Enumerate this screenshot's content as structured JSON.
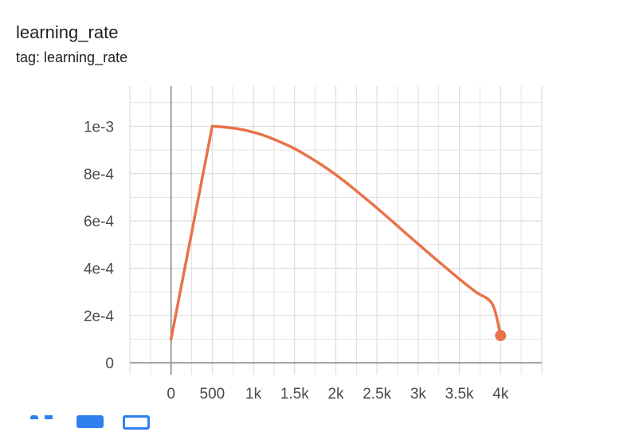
{
  "card": {
    "title": "learning_rate",
    "subtitle": "tag: learning_rate"
  },
  "colors": {
    "series": "#E8734A",
    "grid": "#dcdcdc",
    "axis": "#9e9e9e",
    "tick_text": "#4a4a4a"
  },
  "toolbar": {
    "icons": [
      "fit-domain-icon",
      "log-scale-icon",
      "download-icon"
    ]
  },
  "chart_data": {
    "type": "line",
    "title": "learning_rate",
    "xlabel": "",
    "ylabel": "",
    "xlim": [
      -500,
      4500
    ],
    "ylim": [
      -5e-05,
      0.00117
    ],
    "grid": true,
    "x_ticks": [
      0,
      500,
      1000,
      1500,
      2000,
      2500,
      3000,
      3500,
      4000
    ],
    "x_tick_labels": [
      "0",
      "500",
      "1k",
      "1.5k",
      "2k",
      "2.5k",
      "3k",
      "3.5k",
      "4k"
    ],
    "y_ticks": [
      0,
      0.0002,
      0.0004,
      0.0006,
      0.0008,
      0.001
    ],
    "y_tick_labels": [
      "0",
      "2e-4",
      "4e-4",
      "6e-4",
      "8e-4",
      "1e-3"
    ],
    "series": [
      {
        "x": [
          0,
          500,
          600,
          800,
          1000,
          1200,
          1500,
          1800,
          2000,
          2200,
          2500,
          2800,
          3000,
          3200,
          3500,
          3700,
          3900,
          4000
        ],
        "y": [
          0.0001,
          0.001,
          0.000998,
          0.00099,
          0.000975,
          0.000952,
          0.000905,
          0.000843,
          0.000795,
          0.000741,
          0.000654,
          0.000563,
          0.000502,
          0.000442,
          0.000354,
          0.000299,
          0.000248,
          0.000115
        ]
      }
    ]
  }
}
